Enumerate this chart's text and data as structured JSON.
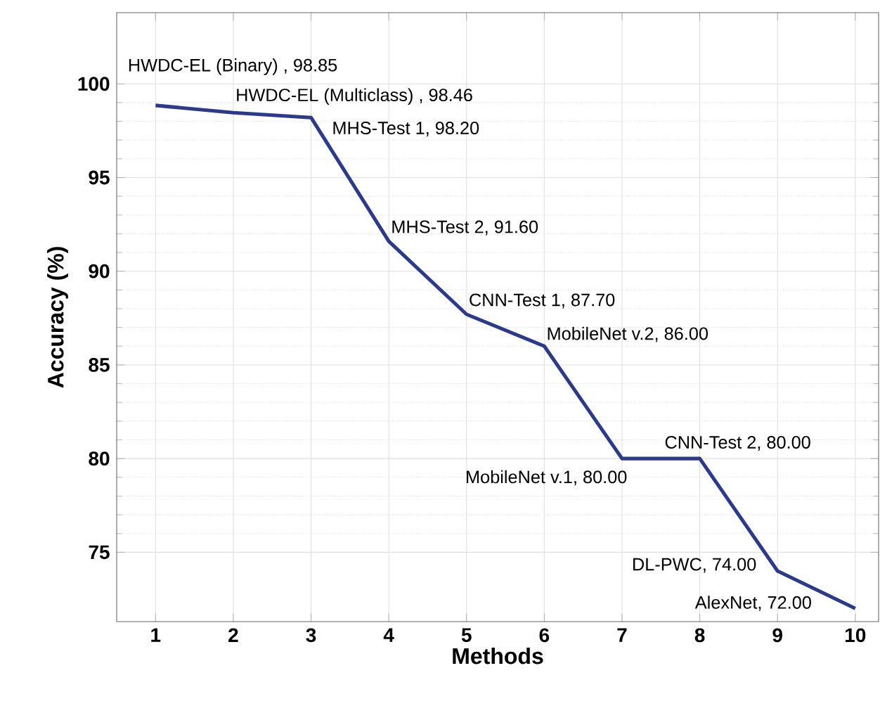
{
  "chart_data": {
    "type": "line",
    "xlabel": "Methods",
    "ylabel": "Accuracy (%)",
    "x": [
      1,
      2,
      3,
      4,
      5,
      6,
      7,
      8,
      9,
      10
    ],
    "series": [
      {
        "color": "#2b3a8c",
        "values": [
          98.85,
          98.46,
          98.2,
          91.6,
          87.7,
          86.0,
          80.0,
          80.0,
          74.0,
          72.0
        ]
      }
    ],
    "xlim": [
      0.5,
      10.3
    ],
    "ylim": [
      71.3,
      103.8
    ],
    "xticks": [
      1,
      2,
      3,
      4,
      5,
      6,
      7,
      8,
      9,
      10
    ],
    "yticks": [
      75,
      80,
      85,
      90,
      95,
      100
    ],
    "grid": true,
    "marker": "none",
    "line_style": "solid",
    "annotations": [
      {
        "text": "HWDC-EL (Binary) , 98.85",
        "x": 1,
        "y": 98.85
      },
      {
        "text": "HWDC-EL (Multiclass) , 98.46",
        "x": 2,
        "y": 98.46
      },
      {
        "text": "MHS-Test 1, 98.20",
        "x": 3,
        "y": 98.2
      },
      {
        "text": "MHS-Test 2, 91.60",
        "x": 4,
        "y": 91.6
      },
      {
        "text": "CNN-Test 1, 87.70",
        "x": 5,
        "y": 87.7
      },
      {
        "text": "MobileNet v.2, 86.00",
        "x": 6,
        "y": 86.0
      },
      {
        "text": "MobileNet v.1, 80.00",
        "x": 7,
        "y": 80.0
      },
      {
        "text": "CNN-Test 2, 80.00",
        "x": 8,
        "y": 80.0
      },
      {
        "text": "DL-PWC, 74.00",
        "x": 9,
        "y": 74.0
      },
      {
        "text": "AlexNet, 72.00",
        "x": 10,
        "y": 72.0
      }
    ]
  }
}
